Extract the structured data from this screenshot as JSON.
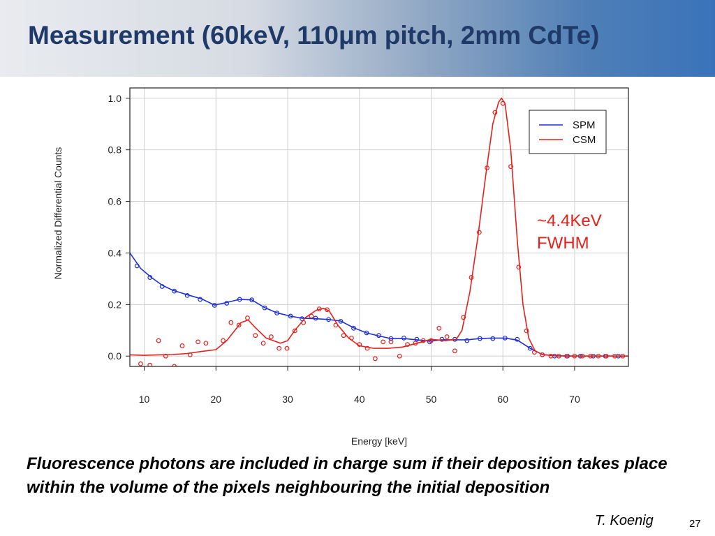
{
  "slide": {
    "title": "Measurement (60keV, 110μm pitch, 2mm CdTe)",
    "note": "Fluorescence photons are included in charge sum if their deposition takes place within the volume of the pixels neighbouring the initial deposition",
    "author": "T. Koenig",
    "page_number": "27"
  },
  "colors": {
    "title": "#1f3a68",
    "spm": "#1f2fd6",
    "csm": "#e3211c",
    "grid": "#d0d0d0"
  },
  "chart_data": {
    "type": "line",
    "title": "",
    "xlabel": "Energy [keV]",
    "ylabel": "Normalized Differential Counts",
    "xlim": [
      8,
      77.5
    ],
    "ylim": [
      -0.04,
      1.04
    ],
    "x_ticks": [
      10,
      20,
      30,
      40,
      50,
      60,
      70
    ],
    "y_ticks": [
      0.0,
      0.2,
      0.4,
      0.6,
      0.8,
      1.0
    ],
    "x_tick_labels": [
      "10",
      "20",
      "30",
      "40",
      "50",
      "60",
      "70"
    ],
    "y_tick_labels": [
      "0.0",
      "0.2",
      "0.4",
      "0.6",
      "0.8",
      "1.0"
    ],
    "grid": true,
    "legend_position": "top-right",
    "annotation": [
      "~4.4KeV",
      "FWHM"
    ],
    "series": [
      {
        "name": "SPM",
        "color": "#1f2fd6",
        "markers": [
          [
            9,
            0.35
          ],
          [
            10.8,
            0.305
          ],
          [
            12.5,
            0.27
          ],
          [
            14.2,
            0.252
          ],
          [
            16,
            0.235
          ],
          [
            17.8,
            0.22
          ],
          [
            19.8,
            0.197
          ],
          [
            21.5,
            0.205
          ],
          [
            23.3,
            0.22
          ],
          [
            25,
            0.218
          ],
          [
            26.8,
            0.187
          ],
          [
            28.5,
            0.167
          ],
          [
            30.4,
            0.155
          ],
          [
            32,
            0.145
          ],
          [
            33.9,
            0.147
          ],
          [
            35.7,
            0.142
          ],
          [
            37.4,
            0.135
          ],
          [
            39.2,
            0.108
          ],
          [
            41,
            0.09
          ],
          [
            42.7,
            0.08
          ],
          [
            44.4,
            0.068
          ],
          [
            46.2,
            0.07
          ],
          [
            48,
            0.065
          ],
          [
            49.8,
            0.055
          ],
          [
            51.5,
            0.065
          ],
          [
            53.3,
            0.065
          ],
          [
            55,
            0.06
          ],
          [
            56.8,
            0.068
          ],
          [
            58.6,
            0.068
          ],
          [
            60.3,
            0.07
          ],
          [
            62,
            0.065
          ],
          [
            63.8,
            0.03
          ],
          [
            65.5,
            0.005
          ],
          [
            67.2,
            0
          ],
          [
            69,
            0
          ],
          [
            70.8,
            0
          ],
          [
            72.6,
            0
          ],
          [
            74.3,
            0
          ],
          [
            76.1,
            0
          ]
        ],
        "curve": [
          [
            8,
            0.4
          ],
          [
            9.5,
            0.34
          ],
          [
            11,
            0.305
          ],
          [
            12.5,
            0.275
          ],
          [
            14,
            0.255
          ],
          [
            16,
            0.238
          ],
          [
            18,
            0.222
          ],
          [
            19.8,
            0.198
          ],
          [
            21.5,
            0.208
          ],
          [
            23.3,
            0.22
          ],
          [
            25,
            0.218
          ],
          [
            26.8,
            0.188
          ],
          [
            28.5,
            0.168
          ],
          [
            30.4,
            0.155
          ],
          [
            32,
            0.147
          ],
          [
            34,
            0.145
          ],
          [
            35.7,
            0.142
          ],
          [
            37.4,
            0.136
          ],
          [
            39.2,
            0.11
          ],
          [
            41,
            0.09
          ],
          [
            42.7,
            0.078
          ],
          [
            44.4,
            0.068
          ],
          [
            46.2,
            0.068
          ],
          [
            48,
            0.063
          ],
          [
            49.8,
            0.058
          ],
          [
            51.5,
            0.063
          ],
          [
            53.3,
            0.063
          ],
          [
            55,
            0.063
          ],
          [
            56.8,
            0.068
          ],
          [
            58.6,
            0.07
          ],
          [
            60.3,
            0.07
          ],
          [
            62,
            0.062
          ],
          [
            63.8,
            0.03
          ],
          [
            65.5,
            0.006
          ],
          [
            67.5,
            0.001
          ],
          [
            70,
            0
          ],
          [
            72.5,
            0
          ],
          [
            75,
            0
          ],
          [
            77.5,
            0
          ]
        ]
      },
      {
        "name": "CSM",
        "color": "#e3211c",
        "markers": [
          [
            9.5,
            -0.03
          ],
          [
            10.8,
            -0.035
          ],
          [
            12,
            0.06
          ],
          [
            13,
            0
          ],
          [
            14.2,
            -0.04
          ],
          [
            15.3,
            0.04
          ],
          [
            16.4,
            0.005
          ],
          [
            17.5,
            0.055
          ],
          [
            18.6,
            0.05
          ],
          [
            21,
            0.06
          ],
          [
            22.1,
            0.13
          ],
          [
            23.2,
            0.12
          ],
          [
            24.4,
            0.148
          ],
          [
            25.5,
            0.08
          ],
          [
            26.6,
            0.05
          ],
          [
            27.7,
            0.075
          ],
          [
            28.8,
            0.03
          ],
          [
            29.9,
            0.03
          ],
          [
            31,
            0.098
          ],
          [
            32.2,
            0.13
          ],
          [
            33.3,
            0.155
          ],
          [
            34.4,
            0.183
          ],
          [
            35.5,
            0.18
          ],
          [
            36.7,
            0.12
          ],
          [
            37.8,
            0.08
          ],
          [
            38.9,
            0.07
          ],
          [
            40,
            0.045
          ],
          [
            41.1,
            0.03
          ],
          [
            42.2,
            -0.01
          ],
          [
            43.3,
            0.055
          ],
          [
            44.4,
            0.055
          ],
          [
            45.6,
            0
          ],
          [
            46.7,
            0.045
          ],
          [
            47.8,
            0.05
          ],
          [
            48.9,
            0.06
          ],
          [
            50,
            0.06
          ],
          [
            51.1,
            0.108
          ],
          [
            52.2,
            0.075
          ],
          [
            53.3,
            0.02
          ],
          [
            54.5,
            0.15
          ],
          [
            55.6,
            0.305
          ],
          [
            56.7,
            0.48
          ],
          [
            57.8,
            0.73
          ],
          [
            58.9,
            0.945
          ],
          [
            60,
            0.98
          ],
          [
            61.1,
            0.735
          ],
          [
            62.2,
            0.345
          ],
          [
            63.3,
            0.098
          ],
          [
            64.4,
            0.015
          ],
          [
            65.5,
            0.005
          ],
          [
            66.7,
            0
          ],
          [
            67.8,
            0
          ],
          [
            68.9,
            0
          ],
          [
            70,
            0
          ],
          [
            71.1,
            0
          ],
          [
            72.2,
            0
          ],
          [
            73.3,
            0
          ],
          [
            74.4,
            0
          ],
          [
            75.6,
            0
          ],
          [
            76.7,
            0
          ]
        ],
        "curve": [
          [
            8,
            0.005
          ],
          [
            10,
            0.003
          ],
          [
            12,
            0.005
          ],
          [
            14,
            0.006
          ],
          [
            16,
            0.01
          ],
          [
            18,
            0.018
          ],
          [
            20,
            0.025
          ],
          [
            21.5,
            0.06
          ],
          [
            23.5,
            0.13
          ],
          [
            24.5,
            0.14
          ],
          [
            25.5,
            0.11
          ],
          [
            27,
            0.07
          ],
          [
            29,
            0.05
          ],
          [
            30,
            0.06
          ],
          [
            31,
            0.1
          ],
          [
            32.5,
            0.15
          ],
          [
            34,
            0.178
          ],
          [
            35,
            0.185
          ],
          [
            35.8,
            0.175
          ],
          [
            37,
            0.12
          ],
          [
            38.5,
            0.07
          ],
          [
            40,
            0.04
          ],
          [
            42,
            0.03
          ],
          [
            44,
            0.03
          ],
          [
            46,
            0.035
          ],
          [
            48,
            0.05
          ],
          [
            50,
            0.065
          ],
          [
            52,
            0.06
          ],
          [
            53.5,
            0.065
          ],
          [
            54.3,
            0.1
          ],
          [
            55.4,
            0.25
          ],
          [
            56.5,
            0.46
          ],
          [
            57.6,
            0.7
          ],
          [
            58.6,
            0.9
          ],
          [
            59.4,
            0.985
          ],
          [
            59.8,
            1.0
          ],
          [
            60.3,
            0.98
          ],
          [
            61.1,
            0.8
          ],
          [
            62,
            0.45
          ],
          [
            62.8,
            0.2
          ],
          [
            63.6,
            0.07
          ],
          [
            64.5,
            0.02
          ],
          [
            65.5,
            0.006
          ],
          [
            67,
            0.002
          ],
          [
            70,
            0
          ],
          [
            73,
            0
          ],
          [
            77.5,
            0
          ]
        ]
      }
    ]
  }
}
